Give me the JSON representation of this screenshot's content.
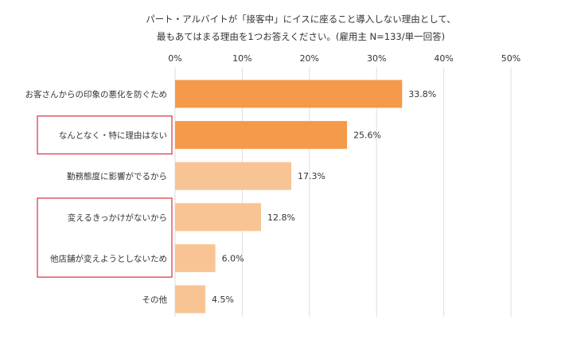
{
  "chart_data": {
    "type": "bar",
    "orientation": "horizontal",
    "title": [
      "パート・アルバイトが「接客中」にイスに座ること導入しない理由として、",
      "最もあてはまる理由を1つお答えください。(雇用主 N=133/単一回答)"
    ],
    "categories": [
      "お客さんからの印象の悪化を防ぐため",
      "なんとなく・特に理由はない",
      "勤務態度に影響がでるから",
      "変えるきっかけがないから",
      "他店舗が変えようとしないため",
      "その他"
    ],
    "values": [
      33.8,
      25.6,
      17.3,
      12.8,
      6.0,
      4.5
    ],
    "value_labels": [
      "33.8%",
      "25.6%",
      "17.3%",
      "12.8%",
      "6.0%",
      "4.5%"
    ],
    "xlim": [
      0,
      50
    ],
    "ticks": [
      "0%",
      "10%",
      "20%",
      "30%",
      "40%",
      "50%"
    ],
    "tick_values": [
      0,
      10,
      20,
      30,
      40,
      50
    ],
    "grid": true,
    "colors": {
      "dark": "#f5994a",
      "light": "#f9c494",
      "bars": [
        "dark",
        "dark",
        "light",
        "light",
        "light",
        "light"
      ],
      "highlight": "#d9323b"
    },
    "highlight_groups": [
      [
        1
      ],
      [
        3,
        4
      ]
    ]
  }
}
